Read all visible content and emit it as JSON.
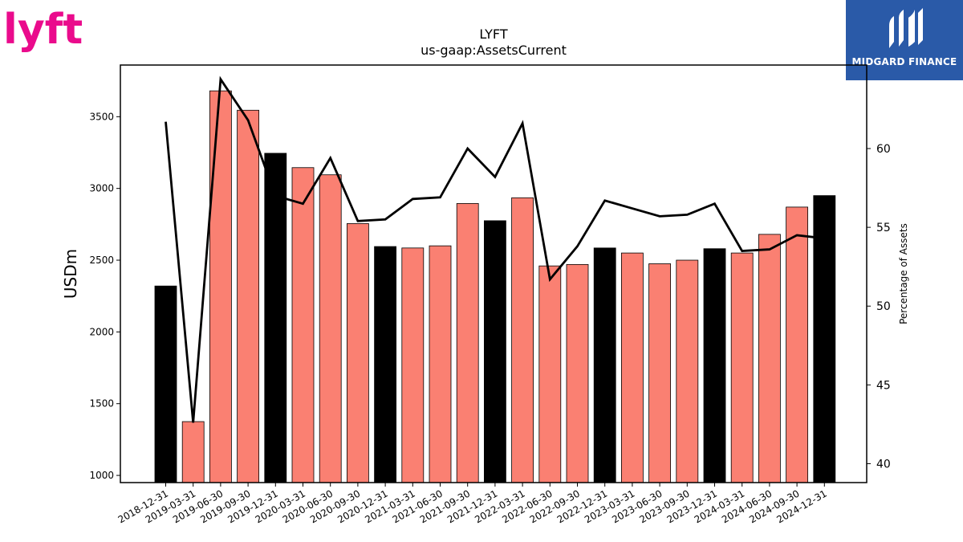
{
  "logos": {
    "left_text": "lyft",
    "right_text": "MIDGARD FINANCE"
  },
  "chart_data": {
    "type": "bar",
    "title": "LYFT",
    "subtitle": "us-gaap:AssetsCurrent",
    "ylabel": "USDm",
    "y2label": "Percentage of Assets",
    "ylim": [
      950,
      3860
    ],
    "y2lim": [
      38.8,
      65.3
    ],
    "yticks": [
      1000,
      1500,
      2000,
      2500,
      3000,
      3500
    ],
    "y2ticks": [
      40,
      45,
      50,
      55,
      60
    ],
    "categories": [
      "2018-12-31",
      "2019-03-31",
      "2019-06-30",
      "2019-09-30",
      "2019-12-31",
      "2020-03-31",
      "2020-06-30",
      "2020-09-30",
      "2020-12-31",
      "2021-03-31",
      "2021-06-30",
      "2021-09-30",
      "2021-12-31",
      "2022-03-31",
      "2022-06-30",
      "2022-09-30",
      "2022-12-31",
      "2023-03-31",
      "2023-06-30",
      "2023-09-30",
      "2023-12-31",
      "2024-03-31",
      "2024-06-30",
      "2024-09-30",
      "2024-12-31"
    ],
    "series": [
      {
        "type": "bar",
        "values": [
          2320,
          1375,
          3680,
          3545,
          3245,
          3145,
          3095,
          2755,
          2595,
          2585,
          2600,
          2895,
          2775,
          2935,
          2460,
          2470,
          2585,
          2550,
          2475,
          2500,
          2580,
          2550,
          2680,
          2870,
          2950
        ]
      },
      {
        "type": "line",
        "axis": "right",
        "values": [
          61.7,
          42.6,
          64.4,
          61.8,
          57.0,
          56.5,
          59.4,
          55.4,
          55.5,
          56.8,
          56.9,
          60.0,
          58.2,
          61.6,
          51.7,
          53.8,
          56.7,
          56.2,
          55.7,
          55.8,
          56.5,
          53.5,
          53.6,
          54.5,
          54.3
        ]
      }
    ],
    "colors": {
      "annual_bar": "#000000",
      "quarter_bar": "#fa8072",
      "bar_edge": "#000000",
      "line": "#000000"
    },
    "grid": false,
    "legend": "none"
  }
}
